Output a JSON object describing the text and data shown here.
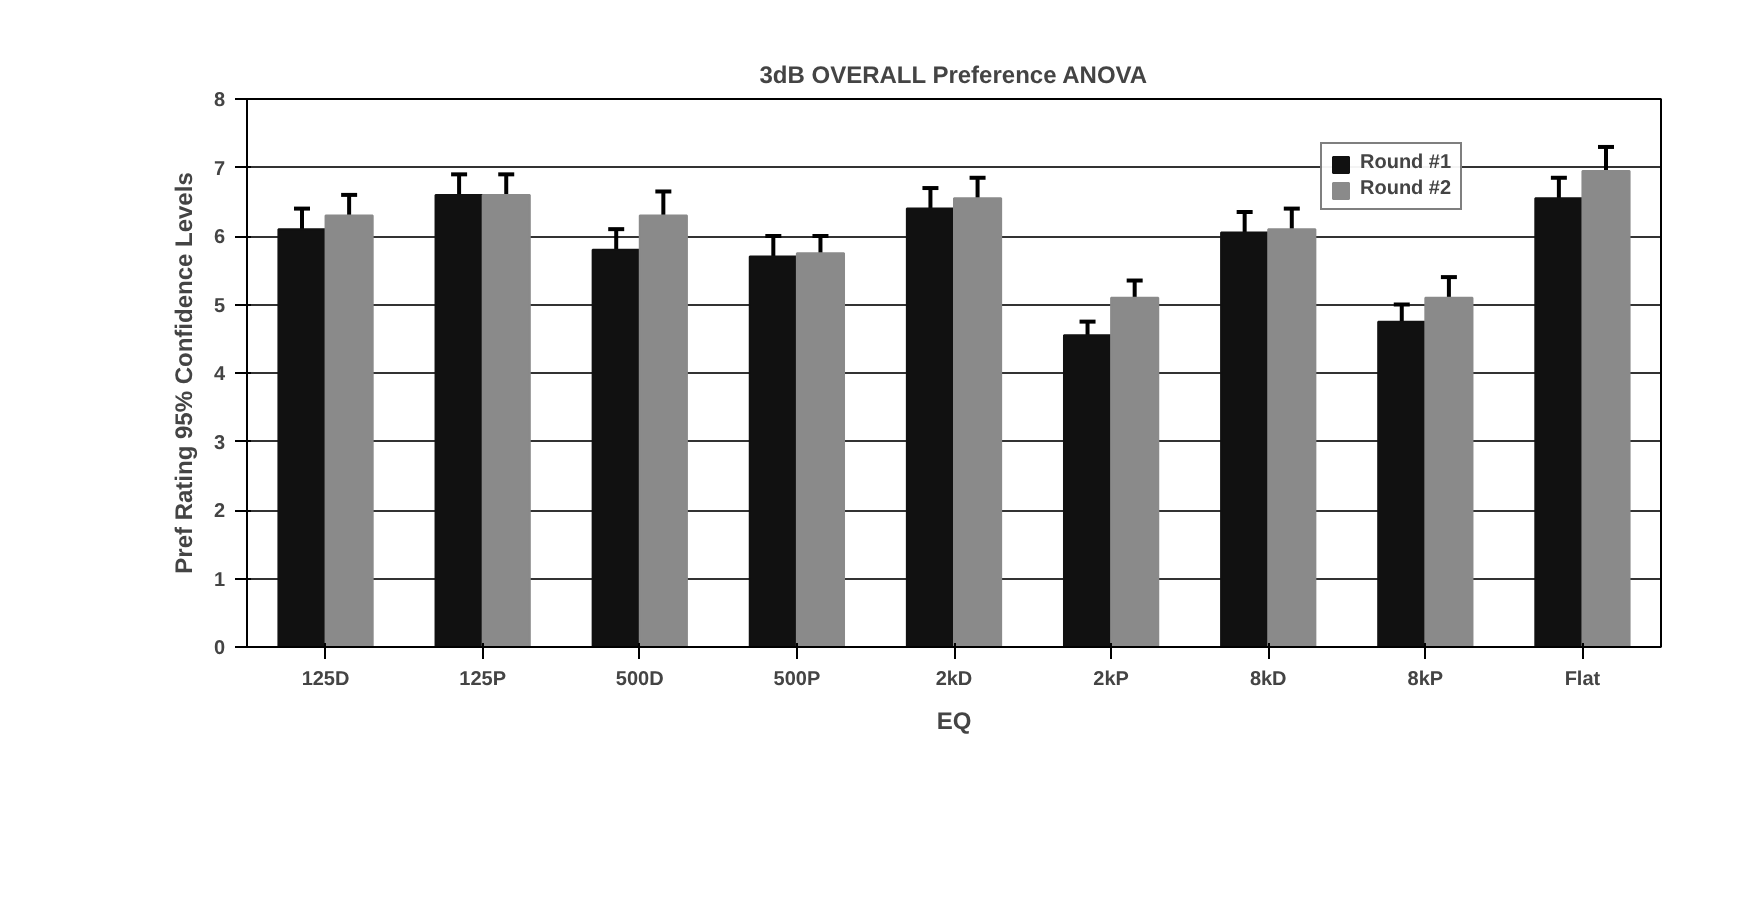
{
  "chart_data": {
    "type": "bar",
    "title": "3dB OVERALL Preference ANOVA",
    "xlabel": "EQ",
    "ylabel": "Pref Rating 95% Confidence Levels",
    "categories": [
      "125D",
      "125P",
      "500D",
      "500P",
      "2kD",
      "2kP",
      "8kD",
      "8kP",
      "Flat"
    ],
    "series": [
      {
        "name": "Round #1",
        "color": "#111111",
        "values": [
          6.1,
          6.6,
          5.8,
          5.7,
          6.4,
          4.55,
          6.05,
          4.75,
          6.55
        ],
        "errors": [
          [
            6.1,
            6.4
          ],
          [
            6.6,
            6.9
          ],
          [
            5.8,
            6.1
          ],
          [
            5.7,
            6.0
          ],
          [
            6.4,
            6.7
          ],
          [
            4.55,
            4.75
          ],
          [
            6.05,
            6.35
          ],
          [
            4.75,
            5.0
          ],
          [
            6.55,
            6.85
          ]
        ]
      },
      {
        "name": "Round #2",
        "color": "#8a8a8a",
        "values": [
          6.3,
          6.6,
          6.3,
          5.75,
          6.55,
          5.1,
          6.1,
          5.1,
          6.95
        ],
        "errors": [
          [
            6.3,
            6.6
          ],
          [
            6.6,
            6.9
          ],
          [
            6.3,
            6.65
          ],
          [
            5.75,
            6.0
          ],
          [
            6.55,
            6.85
          ],
          [
            5.1,
            5.35
          ],
          [
            6.1,
            6.4
          ],
          [
            5.1,
            5.4
          ],
          [
            6.95,
            7.3
          ]
        ]
      }
    ],
    "ylim": [
      0,
      8
    ],
    "yticks": [
      0,
      1,
      2,
      3,
      4,
      5,
      6,
      7,
      8
    ],
    "grid": "y",
    "legend": "top right"
  }
}
